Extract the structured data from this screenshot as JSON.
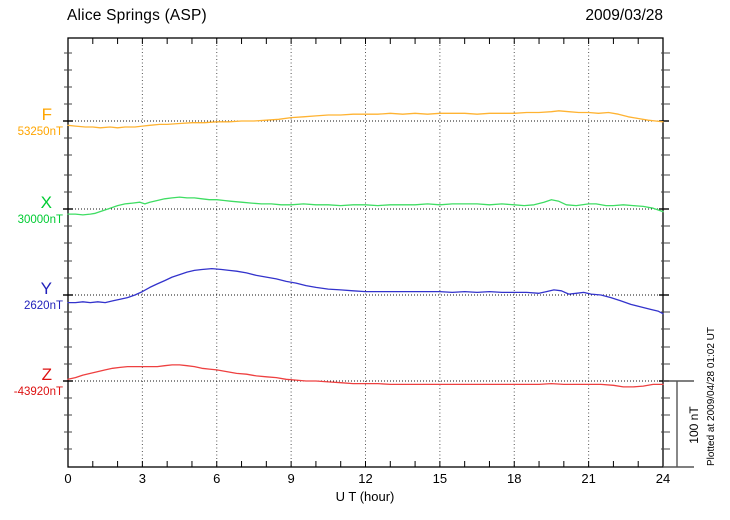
{
  "header": {
    "station_title": "Alice Springs (ASP)",
    "date": "2009/03/28"
  },
  "footer": {
    "plotted_at_note": "Plotted at 2009/04/28 01:02 UT"
  },
  "chart_data": {
    "type": "line",
    "title": "Alice Springs (ASP)",
    "date_shown": "2009/03/28",
    "xlabel": "U T (hour)",
    "x_range": [
      0,
      24
    ],
    "x_major_tick_labels": [
      "0",
      "3",
      "6",
      "9",
      "12",
      "15",
      "18",
      "21",
      "24"
    ],
    "x_minor_step_hours": 1,
    "grid": "dotted vertical lines at 3-hour marks; dotted horizontal baseline for each trace",
    "legend_position": "left margin, one colored letter + baseline value per trace",
    "y_axis": {
      "scale_bar_label": "100 nT",
      "scale_bar_nT": 100,
      "minor_tick_nT": 20,
      "units_note": "point values are offsets in nT from each trace's dotted baseline"
    },
    "series": [
      {
        "name": "F",
        "baseline_label": "53250nT",
        "baseline_nT": 53250,
        "color": "#FFA500",
        "line_color": "#FFB332",
        "points": [
          [
            0,
            -5
          ],
          [
            0.3,
            -6
          ],
          [
            0.7,
            -7
          ],
          [
            1,
            -7
          ],
          [
            1.3,
            -8
          ],
          [
            1.7,
            -7
          ],
          [
            2,
            -8
          ],
          [
            2.3,
            -7
          ],
          [
            2.7,
            -7
          ],
          [
            3,
            -6
          ],
          [
            3.3,
            -5
          ],
          [
            3.7,
            -4
          ],
          [
            4,
            -4
          ],
          [
            4.5,
            -3
          ],
          [
            5,
            -2
          ],
          [
            5.5,
            -2
          ],
          [
            6,
            -1
          ],
          [
            6.5,
            -1
          ],
          [
            7,
            0
          ],
          [
            7.5,
            0
          ],
          [
            8,
            1
          ],
          [
            8.5,
            2
          ],
          [
            9,
            4
          ],
          [
            9.5,
            5
          ],
          [
            10,
            6
          ],
          [
            10.5,
            7
          ],
          [
            11,
            7
          ],
          [
            11.5,
            8
          ],
          [
            12,
            8
          ],
          [
            12.5,
            8
          ],
          [
            13,
            9
          ],
          [
            13.5,
            8
          ],
          [
            14,
            9
          ],
          [
            14.5,
            8
          ],
          [
            15,
            9
          ],
          [
            15.5,
            9
          ],
          [
            16,
            9
          ],
          [
            16.5,
            8
          ],
          [
            17,
            9
          ],
          [
            17.5,
            9
          ],
          [
            18,
            9
          ],
          [
            18.5,
            10
          ],
          [
            19,
            10
          ],
          [
            19.5,
            11
          ],
          [
            19.8,
            12
          ],
          [
            20.2,
            11
          ],
          [
            20.6,
            10
          ],
          [
            21,
            10
          ],
          [
            21.4,
            9
          ],
          [
            21.8,
            10
          ],
          [
            22.2,
            8
          ],
          [
            22.6,
            5
          ],
          [
            23,
            3
          ],
          [
            23.4,
            1
          ],
          [
            23.7,
            0
          ],
          [
            24,
            -1
          ]
        ]
      },
      {
        "name": "X",
        "baseline_label": "30000nT",
        "baseline_nT": 30000,
        "color": "#00CC33",
        "line_color": "#3FDD63",
        "points": [
          [
            0,
            -6
          ],
          [
            0.3,
            -6
          ],
          [
            0.6,
            -7
          ],
          [
            0.9,
            -6
          ],
          [
            1.1,
            -5
          ],
          [
            1.4,
            -2
          ],
          [
            1.7,
            1
          ],
          [
            2,
            4
          ],
          [
            2.3,
            6
          ],
          [
            2.6,
            7
          ],
          [
            2.9,
            8
          ],
          [
            3.1,
            6
          ],
          [
            3.3,
            8
          ],
          [
            3.6,
            10
          ],
          [
            3.9,
            12
          ],
          [
            4.2,
            13
          ],
          [
            4.5,
            14
          ],
          [
            4.8,
            13
          ],
          [
            5.1,
            13
          ],
          [
            5.4,
            12
          ],
          [
            5.7,
            11
          ],
          [
            6,
            11
          ],
          [
            6.3,
            10
          ],
          [
            6.6,
            9
          ],
          [
            7,
            8
          ],
          [
            7.4,
            7
          ],
          [
            7.8,
            6
          ],
          [
            8.2,
            6
          ],
          [
            8.6,
            5
          ],
          [
            9,
            5
          ],
          [
            9.5,
            6
          ],
          [
            10,
            5
          ],
          [
            10.5,
            5
          ],
          [
            11,
            4
          ],
          [
            11.5,
            5
          ],
          [
            12,
            5
          ],
          [
            12.5,
            4
          ],
          [
            13,
            5
          ],
          [
            13.5,
            5
          ],
          [
            14,
            5
          ],
          [
            14.5,
            6
          ],
          [
            15,
            5
          ],
          [
            15.5,
            6
          ],
          [
            16,
            6
          ],
          [
            16.5,
            6
          ],
          [
            17,
            5
          ],
          [
            17.5,
            6
          ],
          [
            18,
            5
          ],
          [
            18.4,
            4
          ],
          [
            18.8,
            5
          ],
          [
            19.2,
            8
          ],
          [
            19.5,
            11
          ],
          [
            19.8,
            9
          ],
          [
            20.1,
            5
          ],
          [
            20.5,
            4
          ],
          [
            21,
            6
          ],
          [
            21.3,
            6
          ],
          [
            21.7,
            4
          ],
          [
            22,
            4
          ],
          [
            22.4,
            5
          ],
          [
            22.8,
            4
          ],
          [
            23.2,
            3
          ],
          [
            23.6,
            1
          ],
          [
            23.9,
            -2
          ],
          [
            24,
            -3
          ]
        ]
      },
      {
        "name": "Y",
        "baseline_label": "2620nT",
        "baseline_nT": 2620,
        "color": "#2222BB",
        "line_color": "#3333CC",
        "points": [
          [
            0,
            -9
          ],
          [
            0.3,
            -9
          ],
          [
            0.6,
            -8
          ],
          [
            0.9,
            -9
          ],
          [
            1.2,
            -8
          ],
          [
            1.5,
            -9
          ],
          [
            1.8,
            -7
          ],
          [
            2.1,
            -5
          ],
          [
            2.4,
            -3
          ],
          [
            2.7,
            0
          ],
          [
            3,
            4
          ],
          [
            3.3,
            9
          ],
          [
            3.6,
            13
          ],
          [
            3.9,
            17
          ],
          [
            4.2,
            21
          ],
          [
            4.5,
            24
          ],
          [
            4.8,
            27
          ],
          [
            5.1,
            29
          ],
          [
            5.4,
            30
          ],
          [
            5.8,
            31
          ],
          [
            6.2,
            30
          ],
          [
            6.5,
            29
          ],
          [
            6.8,
            28
          ],
          [
            7.2,
            26
          ],
          [
            7.6,
            23
          ],
          [
            8,
            21
          ],
          [
            8.4,
            19
          ],
          [
            8.8,
            16
          ],
          [
            9.2,
            14
          ],
          [
            9.6,
            11
          ],
          [
            10,
            9
          ],
          [
            10.5,
            7
          ],
          [
            11,
            6
          ],
          [
            11.5,
            5
          ],
          [
            12,
            4
          ],
          [
            12.5,
            4
          ],
          [
            13,
            4
          ],
          [
            13.5,
            4
          ],
          [
            14,
            4
          ],
          [
            14.5,
            4
          ],
          [
            15,
            4
          ],
          [
            15.5,
            3
          ],
          [
            16,
            4
          ],
          [
            16.5,
            3
          ],
          [
            17,
            4
          ],
          [
            17.5,
            3
          ],
          [
            18,
            3
          ],
          [
            18.5,
            3
          ],
          [
            19,
            2
          ],
          [
            19.3,
            4
          ],
          [
            19.6,
            6
          ],
          [
            19.9,
            5
          ],
          [
            20.2,
            1
          ],
          [
            20.5,
            2
          ],
          [
            20.8,
            3
          ],
          [
            21.1,
            1
          ],
          [
            21.5,
            0
          ],
          [
            21.9,
            -3
          ],
          [
            22.3,
            -7
          ],
          [
            22.7,
            -11
          ],
          [
            23.1,
            -14
          ],
          [
            23.5,
            -17
          ],
          [
            23.8,
            -19
          ],
          [
            24,
            -22
          ]
        ]
      },
      {
        "name": "Z",
        "baseline_label": "-43920nT",
        "baseline_nT": -43920,
        "color": "#DD1111",
        "line_color": "#EE4040",
        "points": [
          [
            0,
            2
          ],
          [
            0.3,
            4
          ],
          [
            0.6,
            7
          ],
          [
            0.9,
            9
          ],
          [
            1.2,
            11
          ],
          [
            1.5,
            13
          ],
          [
            1.8,
            15
          ],
          [
            2.1,
            16
          ],
          [
            2.4,
            17
          ],
          [
            2.7,
            17
          ],
          [
            3,
            17
          ],
          [
            3.3,
            17
          ],
          [
            3.6,
            17
          ],
          [
            3.9,
            18
          ],
          [
            4.2,
            19
          ],
          [
            4.5,
            19
          ],
          [
            4.8,
            18
          ],
          [
            5.1,
            17
          ],
          [
            5.4,
            15
          ],
          [
            5.7,
            14
          ],
          [
            6,
            13
          ],
          [
            6.4,
            11
          ],
          [
            6.8,
            9
          ],
          [
            7.2,
            8
          ],
          [
            7.6,
            6
          ],
          [
            8,
            5
          ],
          [
            8.4,
            4
          ],
          [
            8.8,
            2
          ],
          [
            9.2,
            1
          ],
          [
            9.6,
            0
          ],
          [
            10,
            0
          ],
          [
            10.5,
            -1
          ],
          [
            11,
            -2
          ],
          [
            11.5,
            -3
          ],
          [
            12,
            -3
          ],
          [
            12.5,
            -3
          ],
          [
            13,
            -4
          ],
          [
            13.5,
            -4
          ],
          [
            14,
            -4
          ],
          [
            14.5,
            -4
          ],
          [
            15,
            -4
          ],
          [
            15.5,
            -4
          ],
          [
            16,
            -4
          ],
          [
            16.5,
            -4
          ],
          [
            17,
            -4
          ],
          [
            17.5,
            -4
          ],
          [
            18,
            -4
          ],
          [
            18.5,
            -4
          ],
          [
            19,
            -4
          ],
          [
            19.5,
            -3
          ],
          [
            20,
            -4
          ],
          [
            20.5,
            -4
          ],
          [
            21,
            -4
          ],
          [
            21.5,
            -4
          ],
          [
            22,
            -5
          ],
          [
            22.4,
            -7
          ],
          [
            22.8,
            -7
          ],
          [
            23.2,
            -6
          ],
          [
            23.6,
            -4
          ],
          [
            24,
            -4
          ]
        ]
      }
    ]
  }
}
